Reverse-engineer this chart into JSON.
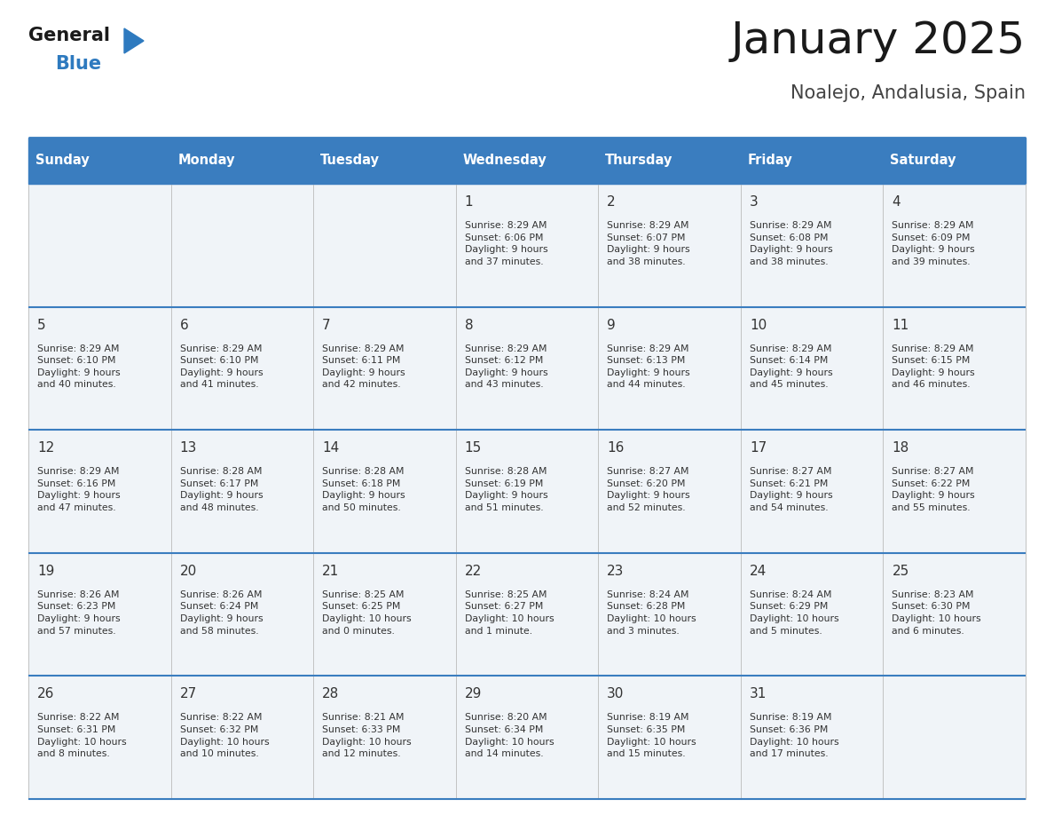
{
  "title": "January 2025",
  "subtitle": "Noalejo, Andalusia, Spain",
  "header_color": "#3a7dbf",
  "header_text_color": "#ffffff",
  "cell_bg_color": "#f0f4f8",
  "day_names": [
    "Sunday",
    "Monday",
    "Tuesday",
    "Wednesday",
    "Thursday",
    "Friday",
    "Saturday"
  ],
  "logo_text1": "General",
  "logo_text2": "Blue",
  "logo_color1": "#1a1a1a",
  "logo_color2": "#2e7abf",
  "title_color": "#1a1a1a",
  "subtitle_color": "#444444",
  "cell_text_color": "#333333",
  "day_num_color": "#333333",
  "grid_line_color": "#3a7dbf",
  "cell_border_color": "#cccccc",
  "weeks": [
    [
      {
        "day": 0,
        "info": ""
      },
      {
        "day": 0,
        "info": ""
      },
      {
        "day": 0,
        "info": ""
      },
      {
        "day": 1,
        "info": "Sunrise: 8:29 AM\nSunset: 6:06 PM\nDaylight: 9 hours\nand 37 minutes."
      },
      {
        "day": 2,
        "info": "Sunrise: 8:29 AM\nSunset: 6:07 PM\nDaylight: 9 hours\nand 38 minutes."
      },
      {
        "day": 3,
        "info": "Sunrise: 8:29 AM\nSunset: 6:08 PM\nDaylight: 9 hours\nand 38 minutes."
      },
      {
        "day": 4,
        "info": "Sunrise: 8:29 AM\nSunset: 6:09 PM\nDaylight: 9 hours\nand 39 minutes."
      }
    ],
    [
      {
        "day": 5,
        "info": "Sunrise: 8:29 AM\nSunset: 6:10 PM\nDaylight: 9 hours\nand 40 minutes."
      },
      {
        "day": 6,
        "info": "Sunrise: 8:29 AM\nSunset: 6:10 PM\nDaylight: 9 hours\nand 41 minutes."
      },
      {
        "day": 7,
        "info": "Sunrise: 8:29 AM\nSunset: 6:11 PM\nDaylight: 9 hours\nand 42 minutes."
      },
      {
        "day": 8,
        "info": "Sunrise: 8:29 AM\nSunset: 6:12 PM\nDaylight: 9 hours\nand 43 minutes."
      },
      {
        "day": 9,
        "info": "Sunrise: 8:29 AM\nSunset: 6:13 PM\nDaylight: 9 hours\nand 44 minutes."
      },
      {
        "day": 10,
        "info": "Sunrise: 8:29 AM\nSunset: 6:14 PM\nDaylight: 9 hours\nand 45 minutes."
      },
      {
        "day": 11,
        "info": "Sunrise: 8:29 AM\nSunset: 6:15 PM\nDaylight: 9 hours\nand 46 minutes."
      }
    ],
    [
      {
        "day": 12,
        "info": "Sunrise: 8:29 AM\nSunset: 6:16 PM\nDaylight: 9 hours\nand 47 minutes."
      },
      {
        "day": 13,
        "info": "Sunrise: 8:28 AM\nSunset: 6:17 PM\nDaylight: 9 hours\nand 48 minutes."
      },
      {
        "day": 14,
        "info": "Sunrise: 8:28 AM\nSunset: 6:18 PM\nDaylight: 9 hours\nand 50 minutes."
      },
      {
        "day": 15,
        "info": "Sunrise: 8:28 AM\nSunset: 6:19 PM\nDaylight: 9 hours\nand 51 minutes."
      },
      {
        "day": 16,
        "info": "Sunrise: 8:27 AM\nSunset: 6:20 PM\nDaylight: 9 hours\nand 52 minutes."
      },
      {
        "day": 17,
        "info": "Sunrise: 8:27 AM\nSunset: 6:21 PM\nDaylight: 9 hours\nand 54 minutes."
      },
      {
        "day": 18,
        "info": "Sunrise: 8:27 AM\nSunset: 6:22 PM\nDaylight: 9 hours\nand 55 minutes."
      }
    ],
    [
      {
        "day": 19,
        "info": "Sunrise: 8:26 AM\nSunset: 6:23 PM\nDaylight: 9 hours\nand 57 minutes."
      },
      {
        "day": 20,
        "info": "Sunrise: 8:26 AM\nSunset: 6:24 PM\nDaylight: 9 hours\nand 58 minutes."
      },
      {
        "day": 21,
        "info": "Sunrise: 8:25 AM\nSunset: 6:25 PM\nDaylight: 10 hours\nand 0 minutes."
      },
      {
        "day": 22,
        "info": "Sunrise: 8:25 AM\nSunset: 6:27 PM\nDaylight: 10 hours\nand 1 minute."
      },
      {
        "day": 23,
        "info": "Sunrise: 8:24 AM\nSunset: 6:28 PM\nDaylight: 10 hours\nand 3 minutes."
      },
      {
        "day": 24,
        "info": "Sunrise: 8:24 AM\nSunset: 6:29 PM\nDaylight: 10 hours\nand 5 minutes."
      },
      {
        "day": 25,
        "info": "Sunrise: 8:23 AM\nSunset: 6:30 PM\nDaylight: 10 hours\nand 6 minutes."
      }
    ],
    [
      {
        "day": 26,
        "info": "Sunrise: 8:22 AM\nSunset: 6:31 PM\nDaylight: 10 hours\nand 8 minutes."
      },
      {
        "day": 27,
        "info": "Sunrise: 8:22 AM\nSunset: 6:32 PM\nDaylight: 10 hours\nand 10 minutes."
      },
      {
        "day": 28,
        "info": "Sunrise: 8:21 AM\nSunset: 6:33 PM\nDaylight: 10 hours\nand 12 minutes."
      },
      {
        "day": 29,
        "info": "Sunrise: 8:20 AM\nSunset: 6:34 PM\nDaylight: 10 hours\nand 14 minutes."
      },
      {
        "day": 30,
        "info": "Sunrise: 8:19 AM\nSunset: 6:35 PM\nDaylight: 10 hours\nand 15 minutes."
      },
      {
        "day": 31,
        "info": "Sunrise: 8:19 AM\nSunset: 6:36 PM\nDaylight: 10 hours\nand 17 minutes."
      },
      {
        "day": 0,
        "info": ""
      }
    ]
  ]
}
